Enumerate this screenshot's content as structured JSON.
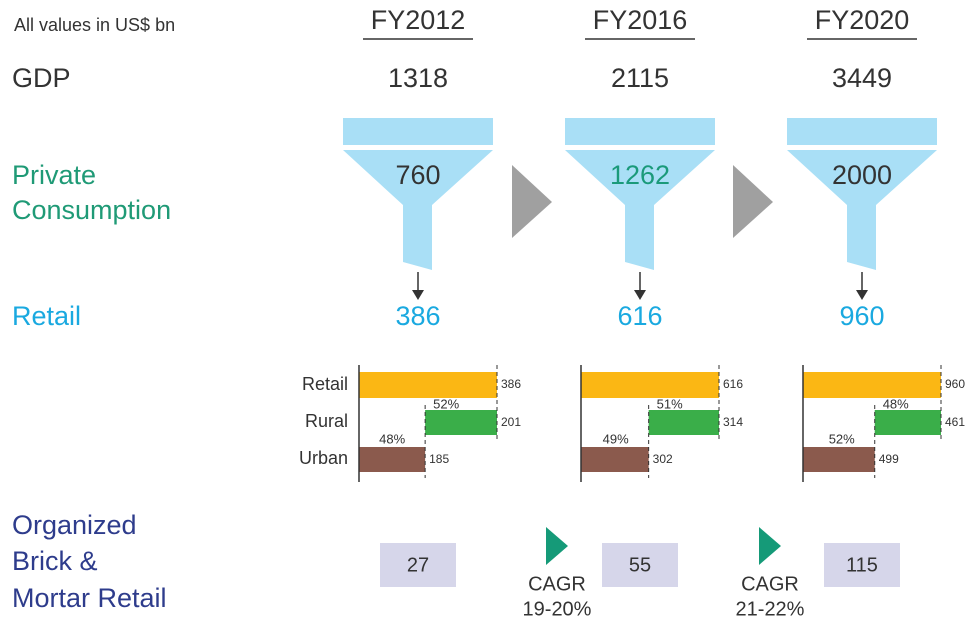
{
  "note": "All values in US$ bn",
  "labels": {
    "gdp": "GDP",
    "private_consumption": [
      "Private",
      "Consumption"
    ],
    "retail": "Retail",
    "organized": [
      "Organized",
      "Brick &",
      "Mortar Retail"
    ]
  },
  "years": [
    {
      "label": "FY2012",
      "gdp": 1318,
      "private_consumption": 760,
      "retail": 386,
      "breakdown": {
        "type": "bar",
        "categories": [
          "Retail",
          "Rural",
          "Urban"
        ],
        "values": [
          386,
          201,
          185
        ],
        "shares": [
          null,
          "52%",
          "48%"
        ]
      },
      "organized": 27
    },
    {
      "label": "FY2016",
      "gdp": 2115,
      "private_consumption": 1262,
      "retail": 616,
      "breakdown": {
        "type": "bar",
        "categories": [
          "Retail",
          "Rural",
          "Urban"
        ],
        "values": [
          616,
          314,
          302
        ],
        "shares": [
          null,
          "51%",
          "49%"
        ]
      },
      "organized": 55
    },
    {
      "label": "FY2020",
      "gdp": 3449,
      "private_consumption": 2000,
      "retail": 960,
      "breakdown": {
        "type": "bar",
        "categories": [
          "Retail",
          "Rural",
          "Urban"
        ],
        "values": [
          960,
          461,
          499
        ],
        "shares": [
          null,
          "48%",
          "52%"
        ]
      },
      "organized": 115
    }
  ],
  "cagr": [
    {
      "label": "CAGR",
      "range": "19-20%"
    },
    {
      "label": "CAGR",
      "range": "21-22%"
    }
  ],
  "colors": {
    "retail": "#fbb714",
    "rural": "#3aae49",
    "urban": "#8b5a4d"
  }
}
